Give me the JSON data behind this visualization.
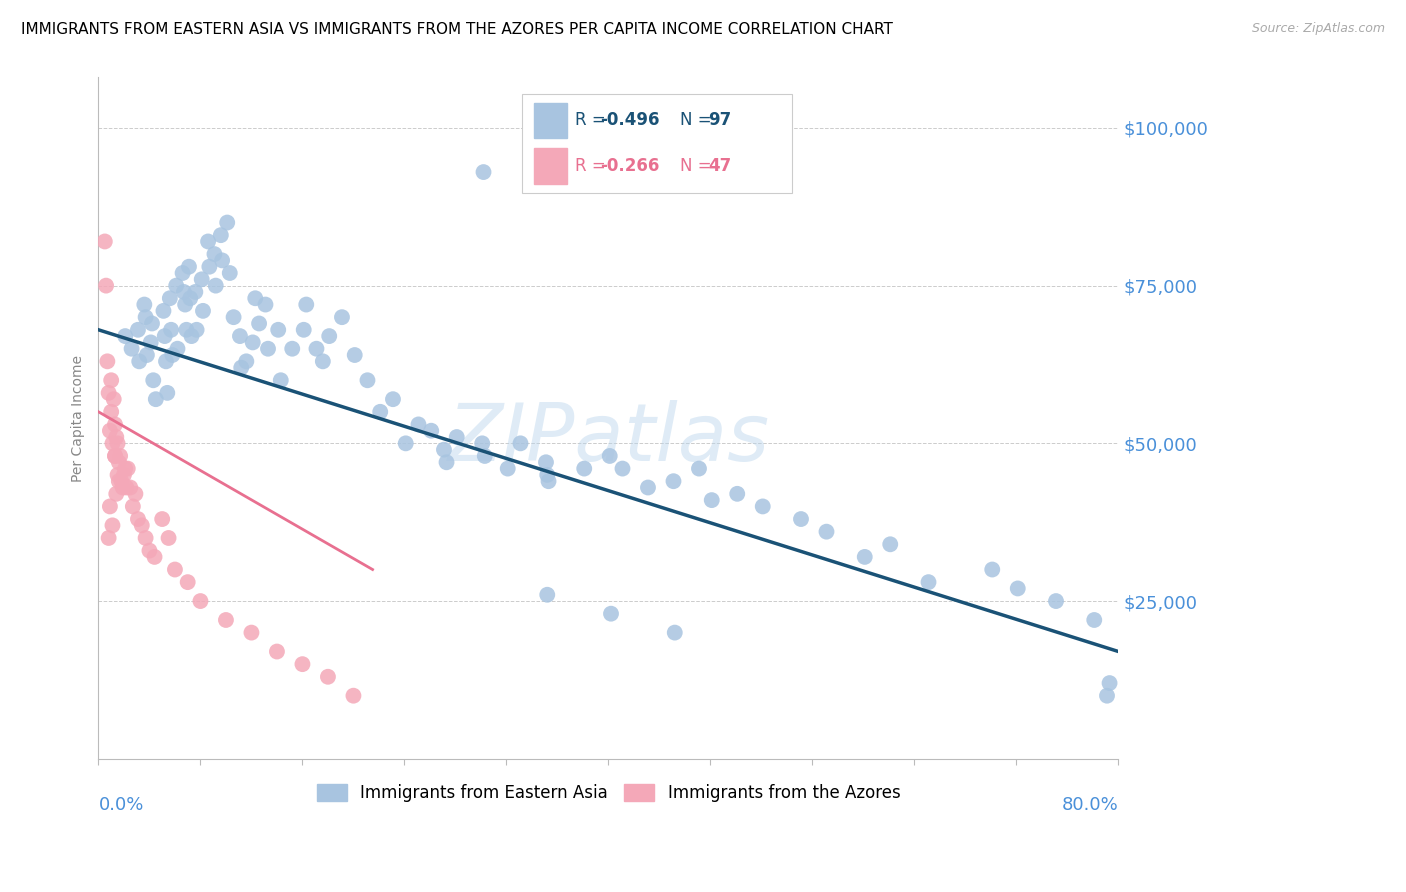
{
  "title": "IMMIGRANTS FROM EASTERN ASIA VS IMMIGRANTS FROM THE AZORES PER CAPITA INCOME CORRELATION CHART",
  "source": "Source: ZipAtlas.com",
  "ylabel": "Per Capita Income",
  "yticks": [
    0,
    25000,
    50000,
    75000,
    100000
  ],
  "ytick_labels": [
    "",
    "$25,000",
    "$50,000",
    "$75,000",
    "$100,000"
  ],
  "ylim": [
    0,
    108000
  ],
  "xlim": [
    0.0,
    0.8
  ],
  "legend_r1": "R = -0.496",
  "legend_n1": "N = 97",
  "legend_r2": "R = -0.266",
  "legend_n2": "N = 47",
  "color_blue": "#A8C4E0",
  "color_pink": "#F4A8B8",
  "color_blue_line": "#1A5276",
  "color_pink_line": "#E87090",
  "color_axis_labels": "#4A90D9",
  "watermark": "ZIPatlas",
  "blue_line_x": [
    0.0,
    0.8
  ],
  "blue_line_y": [
    68000,
    17000
  ],
  "pink_line_x": [
    0.0,
    0.215
  ],
  "pink_line_y": [
    55000,
    30000
  ],
  "blue_scatter_x": [
    0.021,
    0.026,
    0.031,
    0.032,
    0.036,
    0.037,
    0.038,
    0.041,
    0.042,
    0.043,
    0.045,
    0.051,
    0.052,
    0.053,
    0.054,
    0.056,
    0.057,
    0.058,
    0.061,
    0.062,
    0.066,
    0.067,
    0.068,
    0.069,
    0.071,
    0.072,
    0.073,
    0.076,
    0.077,
    0.081,
    0.082,
    0.086,
    0.087,
    0.091,
    0.092,
    0.096,
    0.097,
    0.101,
    0.103,
    0.106,
    0.111,
    0.112,
    0.116,
    0.121,
    0.123,
    0.126,
    0.131,
    0.133,
    0.141,
    0.143,
    0.152,
    0.161,
    0.163,
    0.171,
    0.176,
    0.181,
    0.191,
    0.201,
    0.211,
    0.221,
    0.231,
    0.241,
    0.251,
    0.261,
    0.271,
    0.273,
    0.281,
    0.301,
    0.303,
    0.321,
    0.331,
    0.351,
    0.353,
    0.381,
    0.401,
    0.411,
    0.431,
    0.451,
    0.471,
    0.481,
    0.501,
    0.521,
    0.551,
    0.571,
    0.601,
    0.621,
    0.651,
    0.701,
    0.721,
    0.751,
    0.781,
    0.791,
    0.793,
    0.302,
    0.352,
    0.402,
    0.452,
    0.352
  ],
  "blue_scatter_y": [
    67000,
    65000,
    68000,
    63000,
    72000,
    70000,
    64000,
    66000,
    69000,
    60000,
    57000,
    71000,
    67000,
    63000,
    58000,
    73000,
    68000,
    64000,
    75000,
    65000,
    77000,
    74000,
    72000,
    68000,
    78000,
    73000,
    67000,
    74000,
    68000,
    76000,
    71000,
    82000,
    78000,
    80000,
    75000,
    83000,
    79000,
    85000,
    77000,
    70000,
    67000,
    62000,
    63000,
    66000,
    73000,
    69000,
    72000,
    65000,
    68000,
    60000,
    65000,
    68000,
    72000,
    65000,
    63000,
    67000,
    70000,
    64000,
    60000,
    55000,
    57000,
    50000,
    53000,
    52000,
    49000,
    47000,
    51000,
    50000,
    48000,
    46000,
    50000,
    47000,
    44000,
    46000,
    48000,
    46000,
    43000,
    44000,
    46000,
    41000,
    42000,
    40000,
    38000,
    36000,
    32000,
    34000,
    28000,
    30000,
    27000,
    25000,
    22000,
    10000,
    12000,
    93000,
    26000,
    23000,
    20000,
    45000
  ],
  "pink_scatter_x": [
    0.005,
    0.006,
    0.007,
    0.008,
    0.009,
    0.01,
    0.01,
    0.011,
    0.012,
    0.013,
    0.013,
    0.014,
    0.015,
    0.015,
    0.016,
    0.017,
    0.018,
    0.019,
    0.02,
    0.021,
    0.022,
    0.023,
    0.025,
    0.027,
    0.029,
    0.031,
    0.034,
    0.037,
    0.04,
    0.044,
    0.05,
    0.055,
    0.06,
    0.07,
    0.08,
    0.1,
    0.12,
    0.14,
    0.16,
    0.18,
    0.2,
    0.013,
    0.014,
    0.016,
    0.008,
    0.009,
    0.011
  ],
  "pink_scatter_y": [
    82000,
    75000,
    63000,
    58000,
    52000,
    55000,
    60000,
    50000,
    57000,
    53000,
    48000,
    51000,
    50000,
    45000,
    47000,
    48000,
    44000,
    43000,
    45000,
    46000,
    43000,
    46000,
    43000,
    40000,
    42000,
    38000,
    37000,
    35000,
    33000,
    32000,
    38000,
    35000,
    30000,
    28000,
    25000,
    22000,
    20000,
    17000,
    15000,
    13000,
    10000,
    48000,
    42000,
    44000,
    35000,
    40000,
    37000
  ]
}
